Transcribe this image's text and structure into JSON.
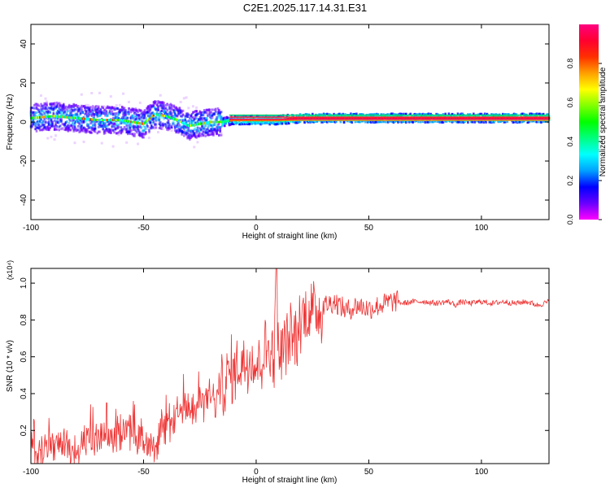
{
  "figure": {
    "title": "C2E1.2025.117.14.31.E31"
  },
  "chart_data": [
    {
      "type": "heatmap",
      "xlabel": "Height of straight line (km)",
      "ylabel": "Frequency (Hz)",
      "xlim": [
        -100,
        130
      ],
      "ylim": [
        -50,
        50
      ],
      "xticks": [
        -100,
        -50,
        0,
        50,
        100
      ],
      "yticks": [
        -40,
        -20,
        0,
        20,
        40
      ],
      "grid": false,
      "colorbar": {
        "label": "Normalized spectral amplitude",
        "range": [
          0.0,
          1.0
        ],
        "ticks": [
          0.0,
          0.2,
          0.4,
          0.6,
          0.8
        ],
        "colors": [
          "#ff00ff",
          "#6a00ff",
          "#0000ff",
          "#00a0ff",
          "#00ffff",
          "#00ff80",
          "#00ff00",
          "#80ff00",
          "#ffff00",
          "#ffa000",
          "#ff3000",
          "#ff0030",
          "#ff0080"
        ]
      },
      "ridge": {
        "x": [
          -100,
          -90,
          -80,
          -70,
          -60,
          -50,
          -45,
          -40,
          -35,
          -30,
          -25,
          -20,
          -15,
          -10,
          -5,
          0,
          10,
          20,
          40,
          60,
          80,
          90,
          100,
          130
        ],
        "frequency": [
          2,
          3,
          2,
          1,
          1,
          -1,
          4,
          3,
          1,
          -2,
          -1,
          0,
          0,
          1,
          1,
          1,
          1,
          2,
          2,
          2,
          2,
          2,
          2,
          2
        ]
      }
    },
    {
      "type": "line",
      "xlabel": "Height of straight line (km)",
      "ylabel": "SNR (10 * v/v)",
      "y_scale_label": "(x10⁴)",
      "xlim": [
        -100,
        130
      ],
      "ylim": [
        0.02,
        1.08
      ],
      "xticks": [
        -100,
        -50,
        0,
        50,
        100
      ],
      "yticks": [
        0.2,
        0.4,
        0.6,
        0.8,
        1.0
      ],
      "line_color": "#ee3333",
      "series": [
        {
          "x": [
            -100,
            -95,
            -90,
            -85,
            -80,
            -75,
            -70,
            -65,
            -60,
            -55,
            -50,
            -45,
            -40,
            -35,
            -30,
            -25,
            -20,
            -18,
            -15,
            -12,
            -10,
            -8,
            -5,
            -2,
            0,
            2,
            5,
            8,
            9,
            10,
            12,
            15,
            18,
            20,
            22,
            25,
            28,
            30,
            35,
            40,
            45,
            50,
            55,
            60,
            63,
            65,
            70,
            75,
            80,
            85,
            89,
            91,
            95,
            100,
            105,
            110,
            115,
            120,
            125,
            130
          ],
          "y": [
            0.08,
            0.1,
            0.11,
            0.12,
            0.1,
            0.14,
            0.15,
            0.16,
            0.18,
            0.2,
            0.15,
            0.14,
            0.2,
            0.27,
            0.32,
            0.34,
            0.38,
            0.36,
            0.45,
            0.5,
            0.52,
            0.55,
            0.58,
            0.6,
            0.55,
            0.6,
            0.65,
            0.62,
            0.95,
            0.58,
            0.65,
            0.7,
            0.7,
            0.8,
            0.84,
            0.85,
            0.86,
            0.88,
            0.9,
            0.85,
            0.88,
            0.86,
            0.88,
            0.9,
            0.9,
            0.89,
            0.9,
            0.9,
            0.89,
            0.9,
            0.88,
            0.9,
            0.89,
            0.9,
            0.89,
            0.9,
            0.89,
            0.9,
            0.88,
            0.9
          ]
        }
      ]
    }
  ]
}
